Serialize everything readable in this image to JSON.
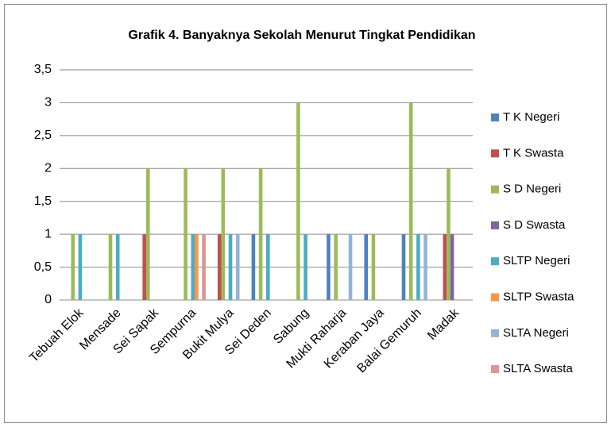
{
  "chart_data": {
    "type": "bar",
    "title": "Grafik 4. Banyaknya  Sekolah Menurut Tingkat  Pendidikan",
    "categories": [
      "Tebuah Elok",
      "Mensade",
      "Sei Sapak",
      "Sempurna",
      "Bukit Mulya",
      "Sei Deden",
      "Sabung",
      "Mukti Raharja",
      "Keraban Jaya",
      "Balai Gemuruh",
      "Madak"
    ],
    "series": [
      {
        "name": "T K Negeri",
        "color": "#4f81bd",
        "values": [
          0,
          0,
          0,
          0,
          0,
          1,
          0,
          1,
          1,
          1,
          0
        ]
      },
      {
        "name": "T K Swasta",
        "color": "#c0504d",
        "values": [
          0,
          0,
          1,
          0,
          1,
          0,
          0,
          0,
          0,
          0,
          1
        ]
      },
      {
        "name": "S D Negeri",
        "color": "#9bbb59",
        "values": [
          1,
          1,
          2,
          2,
          2,
          2,
          3,
          1,
          1,
          3,
          2
        ]
      },
      {
        "name": "S D Swasta",
        "color": "#8064a2",
        "values": [
          0,
          0,
          0,
          0,
          0,
          0,
          0,
          0,
          0,
          0,
          1
        ]
      },
      {
        "name": "SLTP Negeri",
        "color": "#4bacc6",
        "values": [
          1,
          1,
          0,
          1,
          1,
          1,
          1,
          0,
          0,
          1,
          0
        ]
      },
      {
        "name": "SLTP Swasta",
        "color": "#f79646",
        "values": [
          0,
          0,
          0,
          1,
          0,
          0,
          0,
          0,
          0,
          0,
          0
        ]
      },
      {
        "name": "SLTA Negeri",
        "color": "#95b3d7",
        "values": [
          0,
          0,
          0,
          0,
          1,
          0,
          0,
          1,
          0,
          1,
          0
        ]
      },
      {
        "name": "SLTA Swasta",
        "color": "#d99694",
        "values": [
          0,
          0,
          0,
          1,
          0,
          0,
          0,
          0,
          0,
          0,
          0
        ]
      }
    ],
    "ylim": [
      0,
      3.5
    ],
    "yticks": [
      0,
      {
        "value": 0.5,
        "label": "0,5"
      },
      1,
      {
        "value": 1.5,
        "label": "1,5"
      },
      2,
      {
        "value": 2.5,
        "label": "2,5"
      },
      3,
      {
        "value": 3.5,
        "label": "3,5"
      }
    ],
    "grid": true
  }
}
